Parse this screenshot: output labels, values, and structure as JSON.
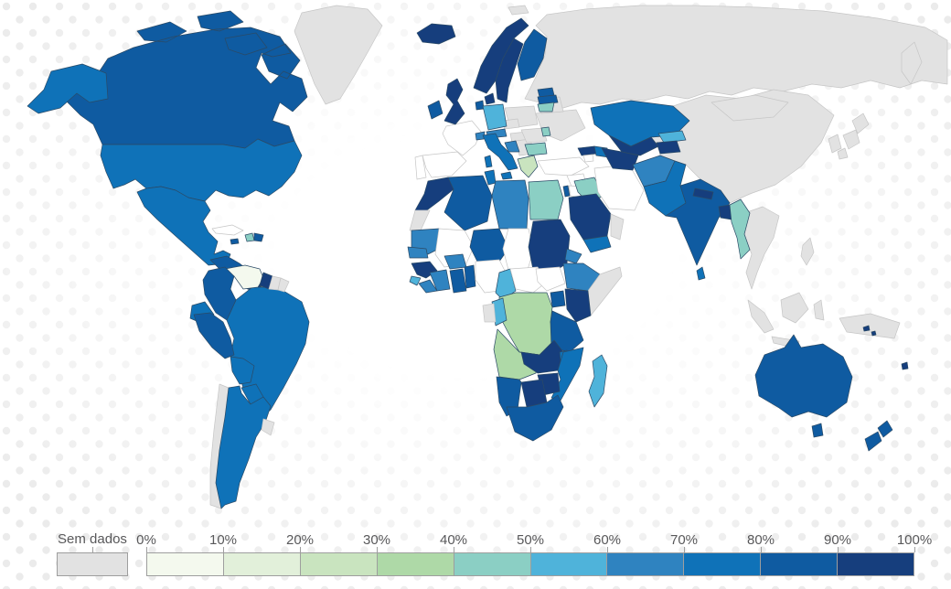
{
  "legend": {
    "no_data_label": "Sem dados",
    "tick_labels": [
      "0%",
      "10%",
      "20%",
      "30%",
      "40%",
      "50%",
      "60%",
      "70%",
      "80%",
      "90%",
      "100%"
    ]
  },
  "background": {
    "dot_color": "#ebebeb",
    "ocean_color": "#ffffff"
  },
  "chart_data": {
    "type": "choropleth",
    "unit": "%",
    "no_data_label": "Sem dados",
    "legend_position": "bottom",
    "bins": [
      {
        "key": "bin0",
        "range": "0-10%",
        "color": "#f4f9ee"
      },
      {
        "key": "bin1",
        "range": "10-20%",
        "color": "#e2f0da"
      },
      {
        "key": "bin2",
        "range": "20-30%",
        "color": "#c9e4bf"
      },
      {
        "key": "bin3",
        "range": "30-40%",
        "color": "#aed9a7"
      },
      {
        "key": "bin4",
        "range": "40-50%",
        "color": "#8bcfc4"
      },
      {
        "key": "bin5",
        "range": "50-60%",
        "color": "#4fb3da"
      },
      {
        "key": "bin6",
        "range": "60-70%",
        "color": "#2f83c0"
      },
      {
        "key": "bin7",
        "range": "70-80%",
        "color": "#0f72b8"
      },
      {
        "key": "bin8",
        "range": "80-90%",
        "color": "#0f5ba1"
      },
      {
        "key": "bin9",
        "range": "90-100%",
        "color": "#163e7d"
      },
      {
        "key": "nodata",
        "range": "Sem dados",
        "color": "#e2e2e2"
      },
      {
        "key": "blank",
        "range": "Sem dados",
        "color": "#ffffff"
      }
    ],
    "countries": [
      {
        "id": "greenland",
        "name": "Greenland",
        "bin": "nodata"
      },
      {
        "id": "canada",
        "name": "Canada",
        "bin": "bin8"
      },
      {
        "id": "usa",
        "name": "United States",
        "bin": "bin7"
      },
      {
        "id": "mexico",
        "name": "Mexico",
        "bin": "bin7"
      },
      {
        "id": "central-america",
        "name": "Central America",
        "bin": "bin8"
      },
      {
        "id": "panama",
        "name": "Panama",
        "bin": "bin9"
      },
      {
        "id": "cuba",
        "name": "Cuba",
        "bin": "blank"
      },
      {
        "id": "jamaica",
        "name": "Jamaica",
        "bin": "bin8"
      },
      {
        "id": "haiti",
        "name": "Haiti",
        "bin": "bin4"
      },
      {
        "id": "dominican-republic",
        "name": "Dominican Republic",
        "bin": "bin8"
      },
      {
        "id": "venezuela",
        "name": "Venezuela",
        "bin": "bin0"
      },
      {
        "id": "guyana",
        "name": "Guyana",
        "bin": "bin9"
      },
      {
        "id": "suriname",
        "name": "Suriname",
        "bin": "nodata"
      },
      {
        "id": "french-guiana",
        "name": "French Guiana",
        "bin": "nodata"
      },
      {
        "id": "colombia",
        "name": "Colombia",
        "bin": "bin8"
      },
      {
        "id": "ecuador",
        "name": "Ecuador",
        "bin": "bin7"
      },
      {
        "id": "peru",
        "name": "Peru",
        "bin": "bin8"
      },
      {
        "id": "brazil",
        "name": "Brazil",
        "bin": "bin7"
      },
      {
        "id": "bolivia",
        "name": "Bolivia",
        "bin": "bin7"
      },
      {
        "id": "paraguay",
        "name": "Paraguay",
        "bin": "bin7"
      },
      {
        "id": "argentina",
        "name": "Argentina",
        "bin": "bin7"
      },
      {
        "id": "chile",
        "name": "Chile",
        "bin": "nodata"
      },
      {
        "id": "uruguay",
        "name": "Uruguay",
        "bin": "nodata"
      },
      {
        "id": "iceland",
        "name": "Iceland",
        "bin": "bin9"
      },
      {
        "id": "ireland",
        "name": "Ireland",
        "bin": "bin8"
      },
      {
        "id": "uk",
        "name": "United Kingdom",
        "bin": "bin9"
      },
      {
        "id": "norway",
        "name": "Norway",
        "bin": "bin9"
      },
      {
        "id": "sweden",
        "name": "Sweden",
        "bin": "bin9"
      },
      {
        "id": "finland",
        "name": "Finland",
        "bin": "bin8"
      },
      {
        "id": "denmark",
        "name": "Denmark",
        "bin": "bin9"
      },
      {
        "id": "estonia",
        "name": "Estonia",
        "bin": "bin8"
      },
      {
        "id": "latvia",
        "name": "Latvia",
        "bin": "bin8"
      },
      {
        "id": "lithuania",
        "name": "Lithuania",
        "bin": "bin4"
      },
      {
        "id": "netherlands",
        "name": "Netherlands",
        "bin": "bin8"
      },
      {
        "id": "germany",
        "name": "Germany",
        "bin": "bin5"
      },
      {
        "id": "poland",
        "name": "Poland",
        "bin": "nodata"
      },
      {
        "id": "czechia",
        "name": "Czechia",
        "bin": "nodata"
      },
      {
        "id": "switzerland",
        "name": "Switzerland",
        "bin": "bin6"
      },
      {
        "id": "austria",
        "name": "Austria",
        "bin": "bin6"
      },
      {
        "id": "hungary",
        "name": "Hungary",
        "bin": "nodata"
      },
      {
        "id": "croatia",
        "name": "Croatia",
        "bin": "bin6"
      },
      {
        "id": "balkans",
        "name": "Western Balkans",
        "bin": "nodata"
      },
      {
        "id": "romania",
        "name": "Romania",
        "bin": "nodata"
      },
      {
        "id": "moldova",
        "name": "Moldova",
        "bin": "bin4"
      },
      {
        "id": "bulgaria",
        "name": "Bulgaria",
        "bin": "bin4"
      },
      {
        "id": "greece",
        "name": "Greece",
        "bin": "bin2"
      },
      {
        "id": "italy",
        "name": "Italy",
        "bin": "bin7"
      },
      {
        "id": "france",
        "name": "France",
        "bin": "blank"
      },
      {
        "id": "spain",
        "name": "Spain",
        "bin": "blank"
      },
      {
        "id": "portugal",
        "name": "Portugal",
        "bin": "blank"
      },
      {
        "id": "ukraine",
        "name": "Ukraine",
        "bin": "nodata"
      },
      {
        "id": "belarus",
        "name": "Belarus",
        "bin": "nodata"
      },
      {
        "id": "russia",
        "name": "Russia",
        "bin": "nodata"
      },
      {
        "id": "svalbard",
        "name": "Svalbard",
        "bin": "nodata"
      },
      {
        "id": "turkey",
        "name": "Turkey",
        "bin": "blank"
      },
      {
        "id": "georgia",
        "name": "Georgia",
        "bin": "bin9"
      },
      {
        "id": "armenia",
        "name": "Armenia",
        "bin": "blank"
      },
      {
        "id": "azerbaijan",
        "name": "Azerbaijan",
        "bin": "bin7"
      },
      {
        "id": "syria",
        "name": "Syria",
        "bin": "blank"
      },
      {
        "id": "jordan",
        "name": "Jordan",
        "bin": "blank"
      },
      {
        "id": "israel",
        "name": "Israel",
        "bin": "bin8"
      },
      {
        "id": "iraq",
        "name": "Iraq",
        "bin": "bin4"
      },
      {
        "id": "iran",
        "name": "Iran",
        "bin": "blank"
      },
      {
        "id": "saudi-arabia",
        "name": "Saudi Arabia",
        "bin": "bin9"
      },
      {
        "id": "yemen",
        "name": "Yemen",
        "bin": "bin7"
      },
      {
        "id": "oman",
        "name": "Oman",
        "bin": "nodata"
      },
      {
        "id": "kazakhstan",
        "name": "Kazakhstan",
        "bin": "bin7"
      },
      {
        "id": "uzbekistan",
        "name": "Uzbekistan",
        "bin": "bin9"
      },
      {
        "id": "turkmenistan",
        "name": "Turkmenistan",
        "bin": "bin9"
      },
      {
        "id": "kyrgyzstan",
        "name": "Kyrgyzstan",
        "bin": "bin5"
      },
      {
        "id": "tajikistan",
        "name": "Tajikistan",
        "bin": "bin9"
      },
      {
        "id": "afghanistan",
        "name": "Afghanistan",
        "bin": "bin6"
      },
      {
        "id": "pakistan",
        "name": "Pakistan",
        "bin": "bin7"
      },
      {
        "id": "india",
        "name": "India",
        "bin": "bin8"
      },
      {
        "id": "nepal",
        "name": "Nepal",
        "bin": "bin9"
      },
      {
        "id": "bangladesh",
        "name": "Bangladesh",
        "bin": "bin9"
      },
      {
        "id": "sri-lanka",
        "name": "Sri Lanka",
        "bin": "bin7"
      },
      {
        "id": "myanmar",
        "name": "Myanmar",
        "bin": "bin4"
      },
      {
        "id": "china",
        "name": "China",
        "bin": "nodata"
      },
      {
        "id": "mongolia",
        "name": "Mongolia",
        "bin": "nodata"
      },
      {
        "id": "korea",
        "name": "Korea",
        "bin": "nodata"
      },
      {
        "id": "japan",
        "name": "Japan",
        "bin": "nodata"
      },
      {
        "id": "seasia",
        "name": "Mainland Southeast Asia",
        "bin": "nodata"
      },
      {
        "id": "philippines",
        "name": "Philippines",
        "bin": "nodata"
      },
      {
        "id": "indonesia",
        "name": "Indonesia",
        "bin": "nodata"
      },
      {
        "id": "papua-new-guinea",
        "name": "Papua New Guinea",
        "bin": "nodata"
      },
      {
        "id": "australia",
        "name": "Australia",
        "bin": "bin8"
      },
      {
        "id": "new-zealand",
        "name": "New Zealand",
        "bin": "bin8"
      },
      {
        "id": "fiji",
        "name": "Fiji",
        "bin": "bin9"
      },
      {
        "id": "solomon-islands",
        "name": "Solomon Islands",
        "bin": "bin9"
      },
      {
        "id": "morocco",
        "name": "Morocco",
        "bin": "bin9"
      },
      {
        "id": "western-sahara",
        "name": "Western Sahara",
        "bin": "nodata"
      },
      {
        "id": "algeria",
        "name": "Algeria",
        "bin": "bin8"
      },
      {
        "id": "tunisia",
        "name": "Tunisia",
        "bin": "bin7"
      },
      {
        "id": "libya",
        "name": "Libya",
        "bin": "bin6"
      },
      {
        "id": "egypt",
        "name": "Egypt",
        "bin": "bin4"
      },
      {
        "id": "mauritania",
        "name": "Mauritania",
        "bin": "bin6"
      },
      {
        "id": "mali",
        "name": "Mali",
        "bin": "blank"
      },
      {
        "id": "niger",
        "name": "Niger",
        "bin": "bin8"
      },
      {
        "id": "chad",
        "name": "Chad",
        "bin": "blank"
      },
      {
        "id": "sudan",
        "name": "Sudan",
        "bin": "bin9"
      },
      {
        "id": "eritrea",
        "name": "Eritrea",
        "bin": "bin6"
      },
      {
        "id": "ethiopia",
        "name": "Ethiopia",
        "bin": "bin6"
      },
      {
        "id": "somalia",
        "name": "Somalia",
        "bin": "nodata"
      },
      {
        "id": "senegal",
        "name": "Senegal",
        "bin": "bin6"
      },
      {
        "id": "guinea",
        "name": "Guinea",
        "bin": "bin9"
      },
      {
        "id": "sierra-leone",
        "name": "Sierra Leone",
        "bin": "bin5"
      },
      {
        "id": "liberia",
        "name": "Liberia",
        "bin": "bin6"
      },
      {
        "id": "cote-divoire",
        "name": "Cote d'Ivoire",
        "bin": "bin6"
      },
      {
        "id": "burkina-faso",
        "name": "Burkina Faso",
        "bin": "bin6"
      },
      {
        "id": "ghana",
        "name": "Ghana",
        "bin": "bin8"
      },
      {
        "id": "togo-benin",
        "name": "Togo and Benin",
        "bin": "bin8"
      },
      {
        "id": "nigeria",
        "name": "Nigeria",
        "bin": "blank"
      },
      {
        "id": "cameroon",
        "name": "Cameroon",
        "bin": "bin5"
      },
      {
        "id": "central-african-republic",
        "name": "Central African Republic",
        "bin": "blank"
      },
      {
        "id": "south-sudan",
        "name": "South Sudan",
        "bin": "blank"
      },
      {
        "id": "uganda",
        "name": "Uganda",
        "bin": "bin8"
      },
      {
        "id": "kenya",
        "name": "Kenya",
        "bin": "bin9"
      },
      {
        "id": "drc",
        "name": "Democratic Republic of the Congo",
        "bin": "bin3"
      },
      {
        "id": "congo",
        "name": "Congo",
        "bin": "bin5"
      },
      {
        "id": "gabon",
        "name": "Gabon",
        "bin": "nodata"
      },
      {
        "id": "tanzania",
        "name": "Tanzania",
        "bin": "bin8"
      },
      {
        "id": "angola",
        "name": "Angola",
        "bin": "bin3"
      },
      {
        "id": "zambia",
        "name": "Zambia",
        "bin": "bin9"
      },
      {
        "id": "malawi",
        "name": "Malawi",
        "bin": "bin7"
      },
      {
        "id": "mozambique",
        "name": "Mozambique",
        "bin": "bin7"
      },
      {
        "id": "zimbabwe",
        "name": "Zimbabwe",
        "bin": "bin9"
      },
      {
        "id": "botswana",
        "name": "Botswana",
        "bin": "bin9"
      },
      {
        "id": "namibia",
        "name": "Namibia",
        "bin": "bin8"
      },
      {
        "id": "south-africa",
        "name": "South Africa",
        "bin": "bin8"
      },
      {
        "id": "madagascar",
        "name": "Madagascar",
        "bin": "bin5"
      }
    ]
  }
}
